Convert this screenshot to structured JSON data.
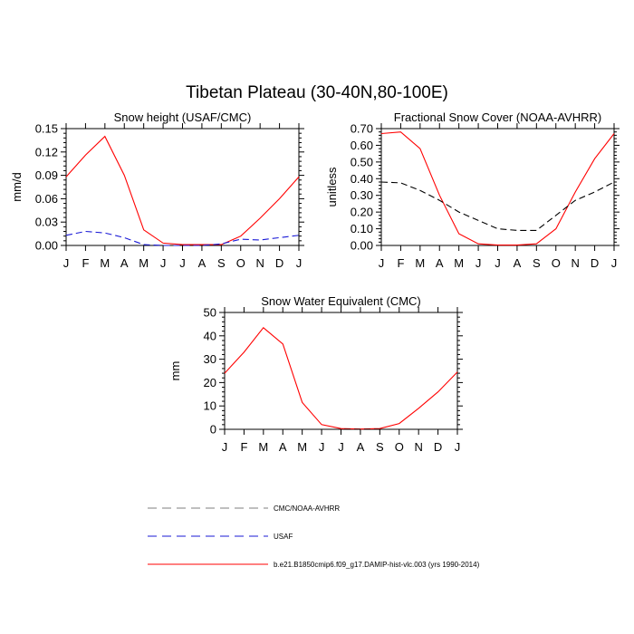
{
  "title": "Tibetan Plateau (30-40N,80-100E)",
  "colors": {
    "model": "#ff0000",
    "usaf": "#1a1ad6",
    "obs": "#000000",
    "legend_obs": "#7f7f7f"
  },
  "legend": [
    {
      "label": "CMC/NOAA-AVHRR",
      "style": "dashed",
      "color": "#7f7f7f"
    },
    {
      "label": "USAF",
      "style": "dashed",
      "color": "#1a1ad6"
    },
    {
      "label": "b.e21.B1850cmip6.f09_g17.DAMIP-hist-vlc.003 (yrs 1990-2014)",
      "style": "solid",
      "color": "#ff0000"
    }
  ],
  "chart_data": [
    {
      "type": "line",
      "title": "Snow height (USAF/CMC)",
      "ylabel": "mm/d",
      "xlabel": "",
      "categories": [
        "J",
        "F",
        "M",
        "A",
        "M",
        "J",
        "J",
        "A",
        "S",
        "O",
        "N",
        "D",
        "J"
      ],
      "ylim": [
        0,
        0.15
      ],
      "yticks": [
        "0.00",
        "0.03",
        "0.06",
        "0.09",
        "0.12",
        "0.15"
      ],
      "ytick_values": [
        0,
        0.03,
        0.06,
        0.09,
        0.12,
        0.15
      ],
      "series": [
        {
          "name": "b.e21.B1850cmip6.f09_g17.DAMIP-hist-vlc.003 (yrs 1990-2014)",
          "style": "solid",
          "color": "#ff0000",
          "values": [
            0.088,
            0.116,
            0.14,
            0.09,
            0.02,
            0.003,
            0.001,
            0.001,
            0.001,
            0.012,
            0.035,
            0.06,
            0.088
          ]
        },
        {
          "name": "USAF",
          "style": "dashed",
          "color": "#1a1ad6",
          "values": [
            0.013,
            0.018,
            0.016,
            0.01,
            0.001,
            0.0,
            0.0,
            0.0,
            0.002,
            0.008,
            0.007,
            0.01,
            0.013
          ]
        }
      ]
    },
    {
      "type": "line",
      "title": "Fractional Snow Cover (NOAA-AVHRR)",
      "ylabel": "unitless",
      "xlabel": "",
      "categories": [
        "J",
        "F",
        "M",
        "A",
        "M",
        "J",
        "J",
        "A",
        "S",
        "O",
        "N",
        "D",
        "J"
      ],
      "ylim": [
        0,
        0.7
      ],
      "yticks": [
        "0.00",
        "0.10",
        "0.20",
        "0.30",
        "0.40",
        "0.50",
        "0.60",
        "0.70"
      ],
      "ytick_values": [
        0,
        0.1,
        0.2,
        0.3,
        0.4,
        0.5,
        0.6,
        0.7
      ],
      "series": [
        {
          "name": "b.e21.B1850cmip6.f09_g17.DAMIP-hist-vlc.003 (yrs 1990-2014)",
          "style": "solid",
          "color": "#ff0000",
          "values": [
            0.67,
            0.68,
            0.58,
            0.3,
            0.07,
            0.01,
            0.002,
            0.002,
            0.01,
            0.1,
            0.32,
            0.52,
            0.67
          ]
        },
        {
          "name": "CMC/NOAA-AVHRR",
          "style": "dashed",
          "color": "#000000",
          "values": [
            0.38,
            0.375,
            0.33,
            0.27,
            0.2,
            0.15,
            0.1,
            0.09,
            0.09,
            0.18,
            0.27,
            0.32,
            0.38
          ]
        }
      ]
    },
    {
      "type": "line",
      "title": "Snow Water Equivalent (CMC)",
      "ylabel": "mm",
      "xlabel": "",
      "categories": [
        "J",
        "F",
        "M",
        "A",
        "M",
        "J",
        "J",
        "A",
        "S",
        "O",
        "N",
        "D",
        "J"
      ],
      "ylim": [
        0,
        50
      ],
      "yticks": [
        "0",
        "10",
        "20",
        "30",
        "40",
        "50"
      ],
      "ytick_values": [
        0,
        10,
        20,
        30,
        40,
        50
      ],
      "series": [
        {
          "name": "b.e21.B1850cmip6.f09_g17.DAMIP-hist-vlc.003 (yrs 1990-2014)",
          "style": "solid",
          "color": "#ff0000",
          "values": [
            24,
            33,
            43.5,
            36.5,
            11.5,
            2,
            0.3,
            0.1,
            0.3,
            2.5,
            9,
            16,
            24.5
          ]
        },
        {
          "name": "CMC/NOAA-AVHRR",
          "style": "dashed",
          "color": "#000000",
          "values": [
            0,
            0,
            0,
            0,
            0,
            0,
            0,
            0,
            0,
            0,
            0,
            0,
            0
          ]
        }
      ]
    }
  ]
}
